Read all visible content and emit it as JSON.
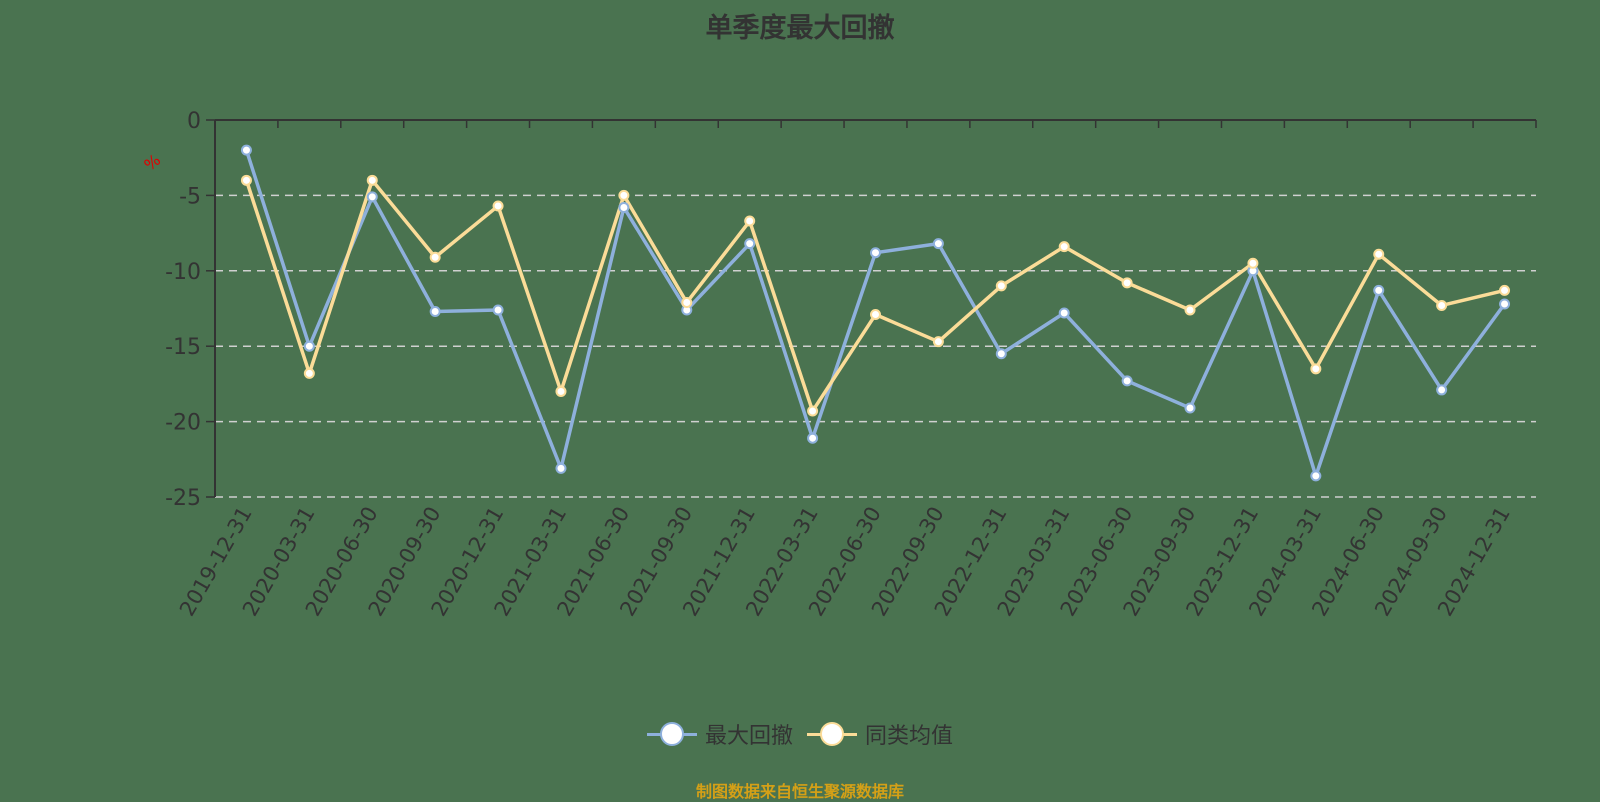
{
  "title": "单季度最大回撤",
  "y_unit": "%",
  "source": "制图数据来自恒生聚源数据库",
  "legend": [
    {
      "label": "最大回撤",
      "color": "#8eb0dc"
    },
    {
      "label": "同类均值",
      "color": "#fbdc98"
    }
  ],
  "chart_data": {
    "type": "line",
    "title": "单季度最大回撤",
    "xlabel": "",
    "ylabel": "%",
    "ylim": [
      -25,
      0
    ],
    "yticks": [
      0,
      -5,
      -10,
      -15,
      -20,
      -25
    ],
    "grid": "horizontal dashed",
    "legend_position": "bottom",
    "x": [
      "2019-12-31",
      "2020-03-31",
      "2020-06-30",
      "2020-09-30",
      "2020-12-31",
      "2021-03-31",
      "2021-06-30",
      "2021-09-30",
      "2021-12-31",
      "2022-03-31",
      "2022-06-30",
      "2022-09-30",
      "2022-12-31",
      "2023-03-31",
      "2023-06-30",
      "2023-09-30",
      "2023-12-31",
      "2024-03-31",
      "2024-06-30",
      "2024-09-30",
      "2024-12-31"
    ],
    "series": [
      {
        "name": "最大回撤",
        "color": "#8eb0dc",
        "values": [
          -2.0,
          -15.0,
          -5.1,
          -12.7,
          -12.6,
          -23.1,
          -5.8,
          -12.6,
          -8.2,
          -21.1,
          -8.8,
          -8.2,
          -15.5,
          -12.8,
          -17.3,
          -19.1,
          -10.0,
          -23.6,
          -11.3,
          -17.9,
          -12.2
        ]
      },
      {
        "name": "同类均值",
        "color": "#fbdc98",
        "values": [
          -4.0,
          -16.8,
          -4.0,
          -9.1,
          -5.7,
          -18.0,
          -5.0,
          -12.1,
          -6.7,
          -19.3,
          -12.9,
          -14.7,
          -11.0,
          -8.4,
          -10.8,
          -12.6,
          -9.5,
          -16.5,
          -8.9,
          -12.3,
          -11.3
        ]
      }
    ]
  }
}
